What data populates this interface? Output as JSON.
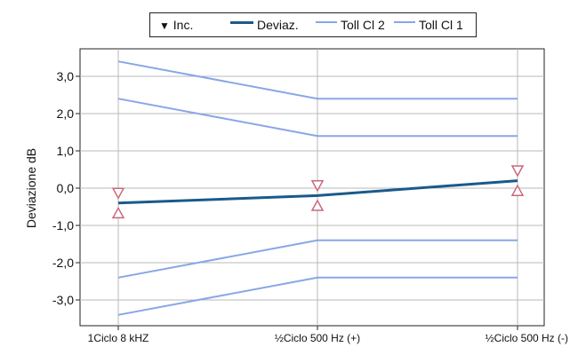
{
  "chart_data": {
    "type": "line",
    "ylabel": "Deviazione dB",
    "xlabel": "",
    "title": "",
    "categories": [
      "1Ciclo 8 kHZ",
      "½Ciclo 500 Hz (+)",
      "½Ciclo 500 Hz (-)"
    ],
    "ylim": [
      -3.5,
      3.5
    ],
    "yticks": [
      "3,0",
      "2,0",
      "1,0",
      "0,0",
      "-1,0",
      "-2,0",
      "-3,0"
    ],
    "ytick_values": [
      3,
      2,
      1,
      0,
      -1,
      -2,
      -3
    ],
    "grid": true,
    "legend_placement": "top-center",
    "legend": {
      "inc": "Inc.",
      "deviaz": "Deviaz.",
      "toll2": "Toll Cl 2",
      "toll1": "Toll Cl 1"
    },
    "series": [
      {
        "name": "Deviaz.",
        "values": [
          -0.4,
          -0.2,
          0.2
        ],
        "color": "#1a5a8a"
      },
      {
        "name": "Toll Cl 2",
        "upper": [
          3.4,
          2.4,
          2.4
        ],
        "lower": [
          -3.4,
          -2.4,
          -2.4
        ],
        "color": "#8aa6e6"
      },
      {
        "name": "Toll Cl 1",
        "upper": [
          2.4,
          1.4,
          1.4
        ],
        "lower": [
          -2.4,
          -1.4,
          -1.4
        ],
        "color": "#8aa6e6"
      },
      {
        "name": "Inc.",
        "center": [
          -0.4,
          -0.2,
          0.2
        ],
        "half_width": [
          0.3,
          0.3,
          0.3
        ],
        "color": "#c9687a"
      }
    ]
  }
}
